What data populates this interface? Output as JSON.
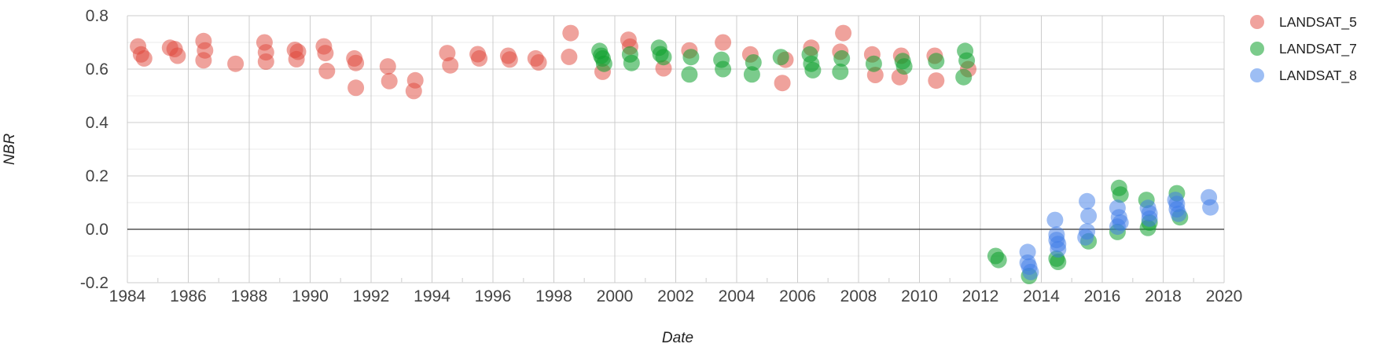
{
  "window": {
    "background_color": "#ffffff"
  },
  "chart_data": {
    "type": "scatter",
    "title": "",
    "xlabel": "Date",
    "ylabel": "NBR",
    "xlim": [
      1984,
      2020
    ],
    "ylim": [
      -0.2,
      0.8
    ],
    "grid_on": true,
    "legend_position": "right",
    "point_radius": 10.5,
    "x_tick_values": [
      1984,
      1986,
      1988,
      1990,
      1992,
      1994,
      1996,
      1998,
      2000,
      2002,
      2004,
      2006,
      2008,
      2010,
      2012,
      2014,
      2016,
      2018,
      2020
    ],
    "x_tick_labels": [
      "1984",
      "1986",
      "1988",
      "1990",
      "1992",
      "1994",
      "1996",
      "1998",
      "2000",
      "2002",
      "2004",
      "2006",
      "2008",
      "2010",
      "2012",
      "2014",
      "2016",
      "2018",
      "2020"
    ],
    "x_minor_tick_values": [
      1985,
      1987,
      1989,
      1991,
      1993,
      1995,
      1997,
      1999,
      2001,
      2003,
      2005,
      2007,
      2009,
      2011,
      2013,
      2015,
      2017,
      2019
    ],
    "y_tick_values": [
      0.8,
      0.6,
      0.4,
      0.2,
      0.0,
      -0.2
    ],
    "y_tick_labels": [
      "0.8",
      "0.6",
      "0.4",
      "0.2",
      "0.0",
      "-0.2"
    ],
    "y_minor_tick_values": [
      0.7,
      0.5,
      0.3,
      0.1,
      -0.1
    ],
    "grid": {
      "major_color": "#cccccc",
      "minor_color": "#ebebeb",
      "minor_tick_color": "#dddddd",
      "zero_line_color": "#333333"
    },
    "text": {
      "tick_color": "#444444",
      "title_color": "#222222"
    },
    "series": [
      {
        "name": "LANDSAT_5",
        "color": "#e0453a",
        "legend_color": "#f0a29d",
        "opacity": 0.5,
        "points": [
          [
            1984.35,
            0.685
          ],
          [
            1984.45,
            0.655
          ],
          [
            1984.55,
            0.64
          ],
          [
            1985.4,
            0.68
          ],
          [
            1985.55,
            0.675
          ],
          [
            1985.65,
            0.65
          ],
          [
            1986.5,
            0.705
          ],
          [
            1986.55,
            0.67
          ],
          [
            1986.5,
            0.633
          ],
          [
            1987.55,
            0.62
          ],
          [
            1988.5,
            0.7
          ],
          [
            1988.55,
            0.663
          ],
          [
            1988.55,
            0.628
          ],
          [
            1989.5,
            0.672
          ],
          [
            1989.6,
            0.665
          ],
          [
            1989.55,
            0.637
          ],
          [
            1990.45,
            0.685
          ],
          [
            1990.5,
            0.66
          ],
          [
            1990.55,
            0.593
          ],
          [
            1991.45,
            0.64
          ],
          [
            1991.5,
            0.623
          ],
          [
            1991.5,
            0.53
          ],
          [
            1992.55,
            0.61
          ],
          [
            1992.6,
            0.555
          ],
          [
            1993.45,
            0.558
          ],
          [
            1993.4,
            0.518
          ],
          [
            1994.5,
            0.66
          ],
          [
            1994.6,
            0.614
          ],
          [
            1995.5,
            0.656
          ],
          [
            1995.55,
            0.64
          ],
          [
            1996.5,
            0.65
          ],
          [
            1996.55,
            0.636
          ],
          [
            1997.4,
            0.64
          ],
          [
            1997.5,
            0.625
          ],
          [
            1998.55,
            0.735
          ],
          [
            1998.5,
            0.646
          ],
          [
            1999.6,
            0.59
          ],
          [
            2000.45,
            0.71
          ],
          [
            2000.5,
            0.684
          ],
          [
            2001.6,
            0.603
          ],
          [
            2002.45,
            0.67
          ],
          [
            2003.55,
            0.7
          ],
          [
            2004.45,
            0.655
          ],
          [
            2005.6,
            0.635
          ],
          [
            2005.5,
            0.548
          ],
          [
            2006.45,
            0.68
          ],
          [
            2007.5,
            0.735
          ],
          [
            2007.4,
            0.665
          ],
          [
            2008.45,
            0.655
          ],
          [
            2008.55,
            0.578
          ],
          [
            2009.4,
            0.65
          ],
          [
            2009.35,
            0.57
          ],
          [
            2010.5,
            0.65
          ],
          [
            2010.55,
            0.557
          ],
          [
            2011.6,
            0.6
          ]
        ]
      },
      {
        "name": "LANDSAT_7",
        "color": "#0fa12d",
        "legend_color": "#7bcb8b",
        "opacity": 0.55,
        "points": [
          [
            1999.5,
            0.668
          ],
          [
            1999.55,
            0.65
          ],
          [
            1999.6,
            0.64
          ],
          [
            1999.65,
            0.62
          ],
          [
            2000.5,
            0.655
          ],
          [
            2000.55,
            0.623
          ],
          [
            2001.45,
            0.68
          ],
          [
            2001.5,
            0.656
          ],
          [
            2001.6,
            0.645
          ],
          [
            2002.5,
            0.645
          ],
          [
            2002.45,
            0.58
          ],
          [
            2003.5,
            0.635
          ],
          [
            2003.55,
            0.6
          ],
          [
            2004.55,
            0.625
          ],
          [
            2004.5,
            0.58
          ],
          [
            2005.45,
            0.645
          ],
          [
            2006.4,
            0.655
          ],
          [
            2006.45,
            0.62
          ],
          [
            2006.5,
            0.596
          ],
          [
            2007.45,
            0.64
          ],
          [
            2007.4,
            0.59
          ],
          [
            2008.5,
            0.62
          ],
          [
            2009.45,
            0.63
          ],
          [
            2009.5,
            0.61
          ],
          [
            2010.55,
            0.63
          ],
          [
            2011.5,
            0.668
          ],
          [
            2011.55,
            0.632
          ],
          [
            2011.45,
            0.57
          ],
          [
            2012.5,
            -0.1
          ],
          [
            2012.6,
            -0.115
          ],
          [
            2013.6,
            -0.175
          ],
          [
            2014.5,
            -0.11
          ],
          [
            2014.55,
            -0.122
          ],
          [
            2015.55,
            -0.045
          ],
          [
            2016.55,
            0.155
          ],
          [
            2016.6,
            0.13
          ],
          [
            2016.5,
            -0.01
          ],
          [
            2017.45,
            0.11
          ],
          [
            2017.55,
            0.025
          ],
          [
            2017.5,
            0.005
          ],
          [
            2018.45,
            0.135
          ],
          [
            2018.55,
            0.045
          ]
        ]
      },
      {
        "name": "LANDSAT_8",
        "color": "#3d7ce8",
        "legend_color": "#9dbef4",
        "opacity": 0.5,
        "points": [
          [
            2013.55,
            -0.085
          ],
          [
            2013.55,
            -0.125
          ],
          [
            2013.6,
            -0.14
          ],
          [
            2013.65,
            -0.16
          ],
          [
            2014.45,
            0.035
          ],
          [
            2014.5,
            -0.02
          ],
          [
            2014.5,
            -0.04
          ],
          [
            2014.55,
            -0.055
          ],
          [
            2014.55,
            -0.075
          ],
          [
            2015.5,
            0.105
          ],
          [
            2015.55,
            0.05
          ],
          [
            2015.5,
            -0.008
          ],
          [
            2015.45,
            -0.03
          ],
          [
            2016.5,
            0.08
          ],
          [
            2016.55,
            0.045
          ],
          [
            2016.6,
            0.025
          ],
          [
            2016.5,
            0.01
          ],
          [
            2017.5,
            0.08
          ],
          [
            2017.55,
            0.06
          ],
          [
            2017.55,
            0.04
          ],
          [
            2018.4,
            0.11
          ],
          [
            2018.45,
            0.095
          ],
          [
            2018.45,
            0.075
          ],
          [
            2018.5,
            0.058
          ],
          [
            2019.5,
            0.12
          ],
          [
            2019.55,
            0.082
          ]
        ]
      }
    ]
  },
  "legend": {
    "items": [
      {
        "label": "LANDSAT_5"
      },
      {
        "label": "LANDSAT_7"
      },
      {
        "label": "LANDSAT_8"
      }
    ]
  }
}
